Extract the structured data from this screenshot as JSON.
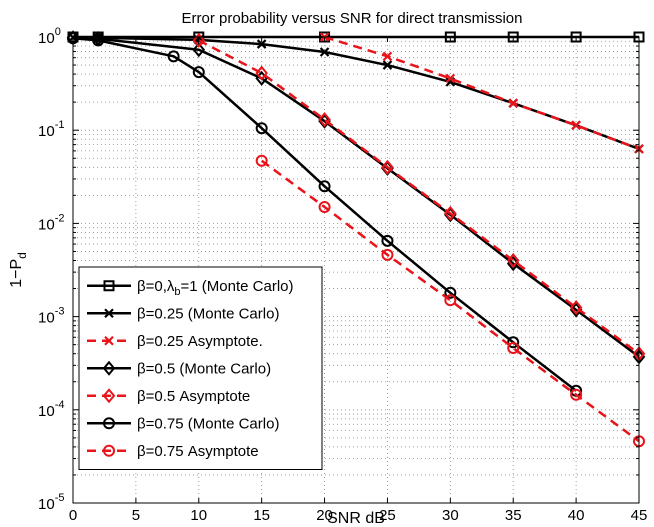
{
  "chart_data": {
    "type": "line",
    "title": "Error probability versus SNR for direct transmission",
    "xlabel": "SNR dB",
    "ylabel": "1−P",
    "ylabel_sub": "d",
    "xlim": [
      0,
      45
    ],
    "ylim": [
      1e-05,
      1
    ],
    "yscale": "log",
    "grid": true,
    "x_ticks": [
      0,
      5,
      10,
      15,
      20,
      25,
      30,
      35,
      40,
      45
    ],
    "y_ticks": [
      {
        "value": 1e-05,
        "base": "10",
        "exp": "-5"
      },
      {
        "value": 0.0001,
        "base": "10",
        "exp": "-4"
      },
      {
        "value": 0.001,
        "base": "10",
        "exp": "-3"
      },
      {
        "value": 0.01,
        "base": "10",
        "exp": "-2"
      },
      {
        "value": 0.1,
        "base": "10",
        "exp": "-1"
      },
      {
        "value": 1,
        "base": "10",
        "exp": "0"
      }
    ],
    "legend_position": "bottom-left",
    "series": [
      {
        "name": "β=0,λ_b=1 (Monte Carlo)",
        "legend_main": "β=0,λ",
        "legend_sub": "b",
        "legend_rest": "=1 (Monte Carlo)",
        "color": "#000000",
        "dash": "solid",
        "marker": "square",
        "x": [
          0,
          2,
          10,
          20,
          30,
          35,
          40,
          45
        ],
        "y": [
          1,
          1,
          1,
          1,
          1,
          1,
          1,
          1
        ]
      },
      {
        "name": "β=0.25 (Monte Carlo)",
        "color": "#000000",
        "dash": "solid",
        "marker": "x",
        "x": [
          0,
          2,
          10,
          15,
          20,
          25,
          30,
          35,
          40,
          45
        ],
        "y": [
          0.99,
          0.98,
          0.93,
          0.84,
          0.69,
          0.5,
          0.33,
          0.195,
          0.113,
          0.063
        ]
      },
      {
        "name": "β=0.25 Asymptote.",
        "color": "#e8141a",
        "dash": "dashed",
        "marker": "x",
        "x": [
          20,
          25,
          30,
          35,
          40,
          45
        ],
        "y": [
          1.0,
          0.62,
          0.36,
          0.195,
          0.113,
          0.063
        ]
      },
      {
        "name": "β=0.5 (Monte Carlo)",
        "color": "#000000",
        "dash": "solid",
        "marker": "diamond",
        "x": [
          0,
          2,
          10,
          15,
          20,
          25,
          30,
          35,
          40,
          45
        ],
        "y": [
          0.98,
          0.96,
          0.73,
          0.36,
          0.125,
          0.039,
          0.0124,
          0.0037,
          0.00118,
          0.00037
        ]
      },
      {
        "name": "β=0.5 Asymptote",
        "color": "#e8141a",
        "dash": "dashed",
        "marker": "diamond",
        "x": [
          10,
          15,
          20,
          25,
          30,
          35,
          40,
          45
        ],
        "y": [
          0.92,
          0.41,
          0.13,
          0.04,
          0.0128,
          0.004,
          0.00125,
          0.0004
        ]
      },
      {
        "name": "β=0.75 (Monte Carlo)",
        "color": "#000000",
        "dash": "solid",
        "marker": "circle",
        "x": [
          0,
          2,
          8,
          10,
          15,
          20,
          25,
          30,
          35,
          40
        ],
        "y": [
          0.97,
          0.92,
          0.62,
          0.42,
          0.105,
          0.025,
          0.0065,
          0.0018,
          0.00053,
          0.00016
        ]
      },
      {
        "name": "β=0.75 Asymptote",
        "color": "#e8141a",
        "dash": "dashed",
        "marker": "circle",
        "x": [
          15,
          20,
          25,
          30,
          35,
          40,
          45
        ],
        "y": [
          0.047,
          0.015,
          0.0046,
          0.0015,
          0.00046,
          0.000145,
          4.6e-05
        ]
      }
    ]
  }
}
